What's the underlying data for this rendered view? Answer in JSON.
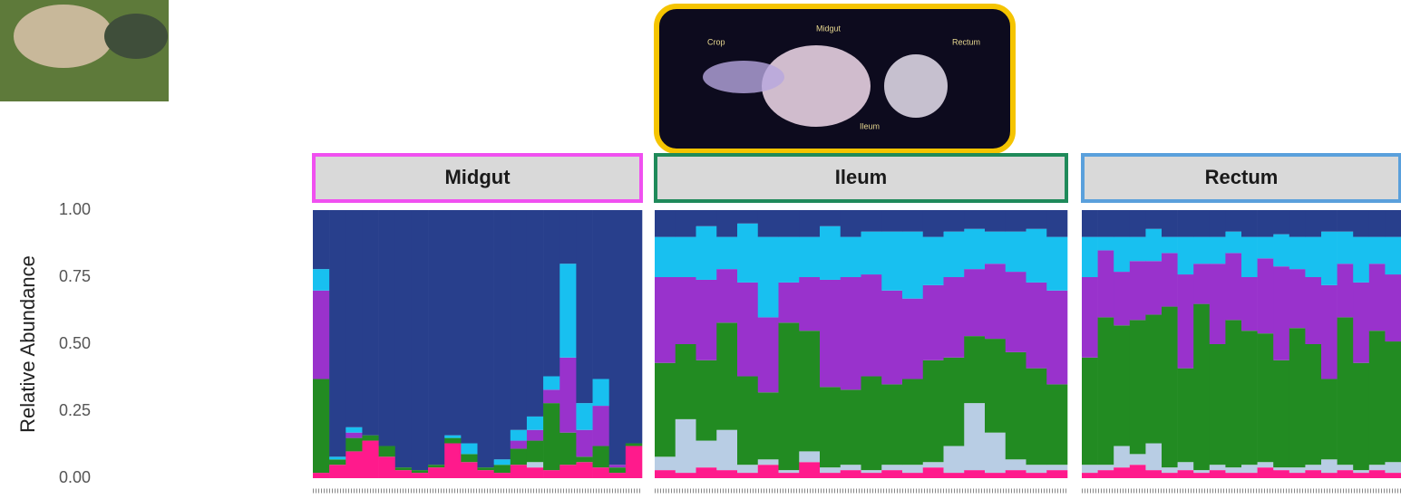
{
  "figure": {
    "image_labels": [
      "Crop",
      "Midgut",
      "Rectum",
      "Ileum"
    ]
  },
  "chart_data": [
    {
      "type": "bar",
      "stacked": true,
      "title": "Midgut",
      "strip_color": "#f050f0",
      "ylabel": "Relative Abundance",
      "ylim": [
        0,
        1
      ],
      "yticks": [
        {
          "value": 0,
          "label": "0.00"
        },
        {
          "value": 0.25,
          "label": "0.25"
        },
        {
          "value": 0.5,
          "label": "0.50"
        },
        {
          "value": 0.75,
          "label": "0.75"
        },
        {
          "value": 1,
          "label": "1.00"
        }
      ],
      "categories": [
        null,
        null,
        null,
        null,
        null,
        null,
        null,
        null,
        null,
        null,
        null,
        null,
        null,
        null,
        null,
        null,
        null,
        null,
        null,
        null
      ],
      "series": [
        {
          "color": "#ff1a8c",
          "values": [
            0.02,
            0.05,
            0.1,
            0.14,
            0.08,
            0.03,
            0.02,
            0.04,
            0.13,
            0.06,
            0.03,
            0.02,
            0.05,
            0.04,
            0.03,
            0.05,
            0.06,
            0.04,
            0.02,
            0.12
          ]
        },
        {
          "color": "#b8cde4",
          "values": [
            0,
            0,
            0,
            0,
            0,
            0,
            0,
            0,
            0,
            0,
            0,
            0,
            0,
            0.02,
            0,
            0,
            0,
            0,
            0,
            0
          ]
        },
        {
          "color": "#228b22",
          "values": [
            0.35,
            0.02,
            0.05,
            0.02,
            0.04,
            0.01,
            0.01,
            0.01,
            0.02,
            0.03,
            0.01,
            0.03,
            0.06,
            0.08,
            0.25,
            0.12,
            0.02,
            0.08,
            0.02,
            0.01
          ]
        },
        {
          "color": "#9932cc",
          "values": [
            0.33,
            0,
            0.02,
            0,
            0,
            0,
            0,
            0,
            0,
            0,
            0,
            0,
            0.03,
            0.04,
            0.05,
            0.28,
            0.1,
            0.15,
            0.01,
            0
          ]
        },
        {
          "color": "#18c0f0",
          "values": [
            0.08,
            0.01,
            0.02,
            0,
            0,
            0,
            0,
            0,
            0.01,
            0.04,
            0,
            0.02,
            0.04,
            0.05,
            0.05,
            0.35,
            0.1,
            0.1,
            0,
            0
          ]
        },
        {
          "color": "#283f8c",
          "values": [
            0.22,
            0.92,
            0.81,
            0.84,
            0.88,
            0.96,
            0.97,
            0.95,
            0.84,
            0.87,
            0.96,
            0.93,
            0.82,
            0.77,
            0.62,
            0.2,
            0.72,
            0.63,
            0.95,
            0.87
          ]
        }
      ]
    },
    {
      "type": "bar",
      "stacked": true,
      "title": "Ileum",
      "strip_color": "#1f8a5a",
      "ylim": [
        0,
        1
      ],
      "categories": [
        null,
        null,
        null,
        null,
        null,
        null,
        null,
        null,
        null,
        null,
        null,
        null,
        null,
        null,
        null,
        null,
        null,
        null,
        null,
        null
      ],
      "series": [
        {
          "color": "#ff1a8c",
          "values": [
            0.03,
            0.02,
            0.04,
            0.03,
            0.02,
            0.05,
            0.02,
            0.06,
            0.02,
            0.03,
            0.02,
            0.03,
            0.02,
            0.04,
            0.02,
            0.03,
            0.02,
            0.03,
            0.02,
            0.03
          ]
        },
        {
          "color": "#b8cde4",
          "values": [
            0.05,
            0.2,
            0.1,
            0.15,
            0.03,
            0.02,
            0.01,
            0.04,
            0.02,
            0.02,
            0.01,
            0.02,
            0.03,
            0.02,
            0.1,
            0.25,
            0.15,
            0.04,
            0.03,
            0.02
          ]
        },
        {
          "color": "#228b22",
          "values": [
            0.35,
            0.28,
            0.3,
            0.4,
            0.33,
            0.25,
            0.55,
            0.45,
            0.3,
            0.28,
            0.35,
            0.3,
            0.32,
            0.38,
            0.33,
            0.25,
            0.35,
            0.4,
            0.36,
            0.3
          ]
        },
        {
          "color": "#9932cc",
          "values": [
            0.32,
            0.25,
            0.3,
            0.2,
            0.35,
            0.28,
            0.15,
            0.2,
            0.4,
            0.42,
            0.38,
            0.35,
            0.3,
            0.28,
            0.3,
            0.25,
            0.28,
            0.3,
            0.32,
            0.35
          ]
        },
        {
          "color": "#18c0f0",
          "values": [
            0.15,
            0.15,
            0.2,
            0.12,
            0.22,
            0.3,
            0.17,
            0.15,
            0.2,
            0.15,
            0.16,
            0.22,
            0.25,
            0.18,
            0.17,
            0.15,
            0.12,
            0.15,
            0.2,
            0.2
          ]
        },
        {
          "color": "#283f8c",
          "values": [
            0.1,
            0.1,
            0.06,
            0.1,
            0.05,
            0.1,
            0.1,
            0.1,
            0.06,
            0.1,
            0.08,
            0.08,
            0.08,
            0.1,
            0.08,
            0.07,
            0.08,
            0.08,
            0.07,
            0.1
          ]
        }
      ]
    },
    {
      "type": "bar",
      "stacked": true,
      "title": "Rectum",
      "strip_color": "#5aa0dc",
      "ylim": [
        0,
        1
      ],
      "categories": [
        null,
        null,
        null,
        null,
        null,
        null,
        null,
        null,
        null,
        null,
        null,
        null,
        null,
        null,
        null,
        null,
        null,
        null,
        null,
        null
      ],
      "series": [
        {
          "color": "#ff1a8c",
          "values": [
            0.02,
            0.03,
            0.04,
            0.05,
            0.03,
            0.02,
            0.03,
            0.02,
            0.03,
            0.02,
            0.02,
            0.04,
            0.03,
            0.02,
            0.03,
            0.02,
            0.03,
            0.02,
            0.03,
            0.02
          ]
        },
        {
          "color": "#b8cde4",
          "values": [
            0.03,
            0.02,
            0.08,
            0.04,
            0.1,
            0.02,
            0.03,
            0.01,
            0.02,
            0.02,
            0.03,
            0.02,
            0.01,
            0.02,
            0.02,
            0.05,
            0.02,
            0.01,
            0.02,
            0.04
          ]
        },
        {
          "color": "#228b22",
          "values": [
            0.4,
            0.55,
            0.45,
            0.5,
            0.48,
            0.6,
            0.35,
            0.62,
            0.45,
            0.55,
            0.5,
            0.48,
            0.4,
            0.52,
            0.45,
            0.3,
            0.55,
            0.4,
            0.5,
            0.45
          ]
        },
        {
          "color": "#9932cc",
          "values": [
            0.3,
            0.25,
            0.2,
            0.22,
            0.2,
            0.2,
            0.35,
            0.15,
            0.3,
            0.25,
            0.2,
            0.28,
            0.35,
            0.22,
            0.25,
            0.35,
            0.2,
            0.3,
            0.25,
            0.25
          ]
        },
        {
          "color": "#18c0f0",
          "values": [
            0.15,
            0.05,
            0.13,
            0.09,
            0.12,
            0.06,
            0.14,
            0.1,
            0.1,
            0.08,
            0.15,
            0.08,
            0.12,
            0.12,
            0.15,
            0.2,
            0.12,
            0.17,
            0.1,
            0.14
          ]
        },
        {
          "color": "#283f8c",
          "values": [
            0.1,
            0.1,
            0.1,
            0.1,
            0.07,
            0.1,
            0.1,
            0.1,
            0.1,
            0.08,
            0.1,
            0.1,
            0.09,
            0.1,
            0.1,
            0.08,
            0.08,
            0.1,
            0.1,
            0.1
          ]
        }
      ]
    }
  ]
}
